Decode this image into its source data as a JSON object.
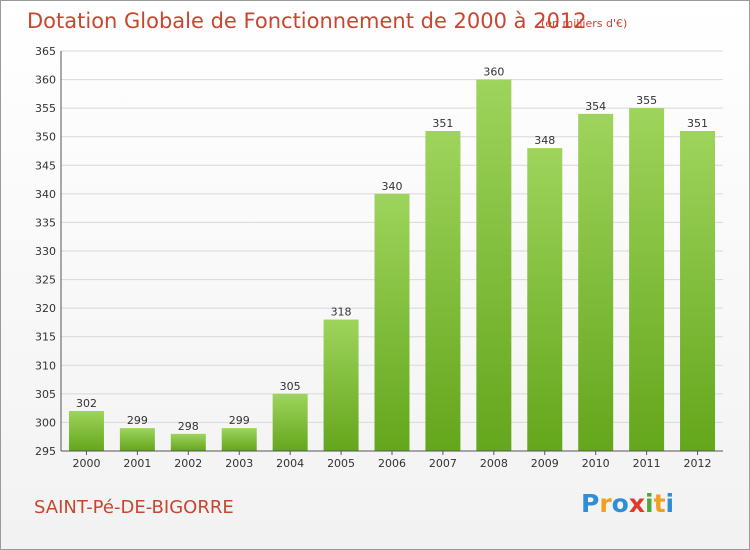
{
  "header": {
    "title": "Dotation Globale de Fonctionnement de 2000 à 2012",
    "unit_note": "(en milliers d'€)"
  },
  "footer": {
    "commune": "SAINT-Pé-DE-BIGORRE",
    "logo_text": "Proxiti",
    "logo_letters": [
      {
        "ch": "P",
        "color": "#2e8fd6"
      },
      {
        "ch": "r",
        "color": "#f0a020"
      },
      {
        "ch": "o",
        "color": "#2e8fd6"
      },
      {
        "ch": "x",
        "color": "#e03a2a"
      },
      {
        "ch": "i",
        "color": "#4aab3a"
      },
      {
        "ch": "t",
        "color": "#f0a020"
      },
      {
        "ch": "i",
        "color": "#2e8fd6"
      }
    ]
  },
  "colors": {
    "bar_top": "#9ed45c",
    "bar_bottom": "#64a61c",
    "grid": "#d8d8d8",
    "axis": "#555555",
    "text": "#333333",
    "accent": "#c8462f"
  },
  "chart_data": {
    "type": "bar",
    "title": "Dotation Globale de Fonctionnement de 2000 à 2012",
    "subtitle": "(en milliers d'€)",
    "categories": [
      "2000",
      "2001",
      "2002",
      "2003",
      "2004",
      "2005",
      "2006",
      "2007",
      "2008",
      "2009",
      "2010",
      "2011",
      "2012"
    ],
    "values": [
      302,
      299,
      298,
      299,
      305,
      318,
      340,
      351,
      360,
      348,
      354,
      355,
      351
    ],
    "ylim": [
      295,
      365
    ],
    "yticks": [
      295,
      300,
      305,
      310,
      315,
      320,
      325,
      330,
      335,
      340,
      345,
      350,
      355,
      360,
      365
    ],
    "grid": true,
    "data_labels": true
  }
}
